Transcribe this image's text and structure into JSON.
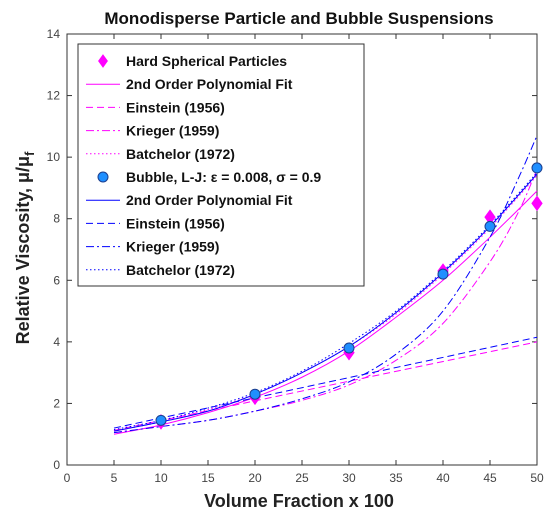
{
  "chart_data": {
    "type": "scatter",
    "title": "Monodisperse Particle and Bubble Suspensions",
    "xlabel": "Volume Fraction x 100",
    "ylabel_main": "Relative Viscosity, μ/μ",
    "ylabel_sub": "f",
    "xlim": [
      0,
      50
    ],
    "ylim": [
      0,
      14
    ],
    "xticks": [
      0,
      5,
      10,
      15,
      20,
      25,
      30,
      35,
      40,
      45,
      50
    ],
    "yticks": [
      0,
      2,
      4,
      6,
      8,
      10,
      12,
      14
    ],
    "grid": false,
    "legend_position": "top-left",
    "colors": {
      "particles": "#ff00ff",
      "bubble": "#0000ff",
      "bubble_marker": "#1f8fff"
    },
    "series": [
      {
        "name": "Hard Spherical Particles",
        "kind": "marker",
        "marker": "diamond",
        "color": "#ff00ff",
        "x": [
          10,
          20,
          30,
          40,
          45,
          50
        ],
        "y": [
          1.4,
          2.2,
          3.65,
          6.3,
          8.05,
          8.5
        ]
      },
      {
        "name": "2nd Order Polynomial Fit",
        "kind": "line",
        "dash": "solid",
        "color": "#ff00ff",
        "x": [
          5,
          10,
          15,
          20,
          25,
          30,
          35,
          40,
          45,
          50
        ],
        "y": [
          1.0,
          1.3,
          1.7,
          2.2,
          2.85,
          3.7,
          4.8,
          6.0,
          7.4,
          8.9
        ]
      },
      {
        "name": "Einstein (1956)",
        "kind": "line",
        "dash": "dashed",
        "color": "#ff00ff",
        "x": [
          5,
          50
        ],
        "y": [
          1.125,
          4.0
        ]
      },
      {
        "name": "Krieger (1959)",
        "kind": "line",
        "dash": "dashdot",
        "color": "#ff00ff",
        "x": [
          5,
          10,
          15,
          20,
          25,
          30,
          35,
          40,
          45,
          48,
          50
        ],
        "y": [
          1.05,
          1.25,
          1.45,
          1.75,
          2.1,
          2.6,
          3.4,
          4.6,
          6.6,
          8.2,
          9.6
        ]
      },
      {
        "name": "Batchelor (1972)",
        "kind": "line",
        "dash": "dotted",
        "color": "#ff00ff",
        "x": [
          5,
          10,
          15,
          20,
          25,
          30,
          35,
          40,
          45,
          50
        ],
        "y": [
          1.1,
          1.4,
          1.8,
          2.3,
          3.0,
          3.85,
          4.9,
          6.2,
          7.7,
          9.4
        ]
      },
      {
        "name": "Bubble, L-J: ε = 0.008, σ = 0.9",
        "kind": "marker",
        "marker": "circle",
        "color": "#1f8fff",
        "x": [
          10,
          20,
          30,
          40,
          45,
          50
        ],
        "y": [
          1.45,
          2.3,
          3.8,
          6.2,
          7.75,
          9.65
        ]
      },
      {
        "name": "2nd Order Polynomial Fit",
        "kind": "line",
        "dash": "solid",
        "color": "#0000ff",
        "x": [
          5,
          10,
          15,
          20,
          25,
          30,
          35,
          40,
          45,
          50
        ],
        "y": [
          1.1,
          1.4,
          1.75,
          2.3,
          3.0,
          3.85,
          4.95,
          6.25,
          7.75,
          9.45
        ]
      },
      {
        "name": "Einstein (1956)",
        "kind": "line",
        "dash": "dashed",
        "color": "#0000ff",
        "x": [
          5,
          50
        ],
        "y": [
          1.2,
          4.15
        ]
      },
      {
        "name": "Krieger (1959)",
        "kind": "line",
        "dash": "dashdot",
        "color": "#0000ff",
        "x": [
          5,
          10,
          15,
          20,
          25,
          30,
          35,
          40,
          45,
          48,
          50
        ],
        "y": [
          1.05,
          1.25,
          1.45,
          1.75,
          2.15,
          2.7,
          3.6,
          5.0,
          7.4,
          9.3,
          10.7
        ]
      },
      {
        "name": "Batchelor (1972)",
        "kind": "line",
        "dash": "dotted",
        "color": "#0000ff",
        "x": [
          5,
          10,
          15,
          20,
          25,
          30,
          35,
          40,
          45,
          50
        ],
        "y": [
          1.15,
          1.45,
          1.85,
          2.35,
          3.05,
          3.95,
          5.0,
          6.3,
          7.8,
          9.5
        ]
      }
    ]
  }
}
